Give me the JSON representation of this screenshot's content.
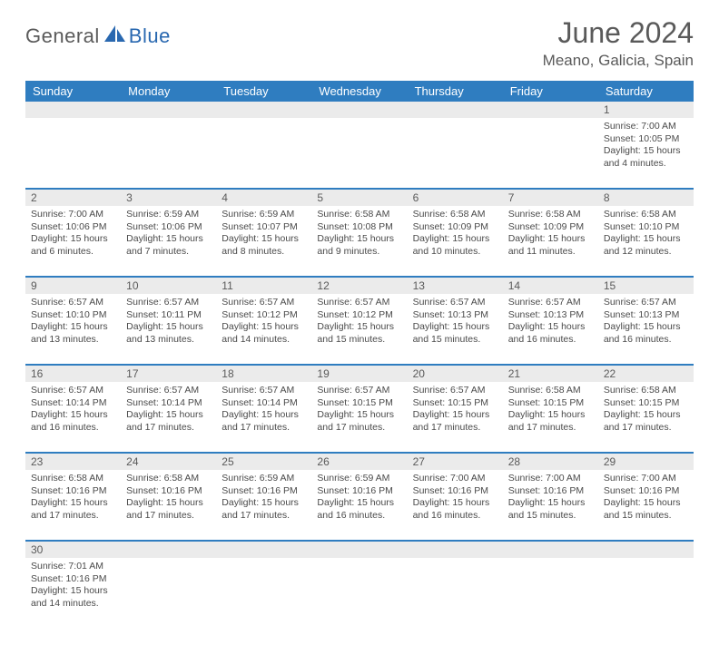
{
  "colors": {
    "header_bg": "#2f7dc0",
    "header_text": "#ffffff",
    "daynum_bg": "#ebebeb",
    "rule": "#2f7dc0",
    "body_text": "#4a4a4a",
    "title_text": "#5a5a5a",
    "logo_gray": "#5a5a5a",
    "logo_blue": "#2968b0",
    "background": "#ffffff"
  },
  "typography": {
    "month_title_size": 32,
    "location_size": 17,
    "day_header_size": 13,
    "daynum_size": 12,
    "cell_text_size": 10.5,
    "font_family": "Arial"
  },
  "logo": {
    "part1": "General",
    "part2": "Blue"
  },
  "title": "June 2024",
  "location": "Meano, Galicia, Spain",
  "day_headers": [
    "Sunday",
    "Monday",
    "Tuesday",
    "Wednesday",
    "Thursday",
    "Friday",
    "Saturday"
  ],
  "weeks": [
    [
      null,
      null,
      null,
      null,
      null,
      null,
      {
        "d": "1",
        "sr": "7:00 AM",
        "ss": "10:05 PM",
        "dl": "15 hours and 4 minutes."
      }
    ],
    [
      {
        "d": "2",
        "sr": "7:00 AM",
        "ss": "10:06 PM",
        "dl": "15 hours and 6 minutes."
      },
      {
        "d": "3",
        "sr": "6:59 AM",
        "ss": "10:06 PM",
        "dl": "15 hours and 7 minutes."
      },
      {
        "d": "4",
        "sr": "6:59 AM",
        "ss": "10:07 PM",
        "dl": "15 hours and 8 minutes."
      },
      {
        "d": "5",
        "sr": "6:58 AM",
        "ss": "10:08 PM",
        "dl": "15 hours and 9 minutes."
      },
      {
        "d": "6",
        "sr": "6:58 AM",
        "ss": "10:09 PM",
        "dl": "15 hours and 10 minutes."
      },
      {
        "d": "7",
        "sr": "6:58 AM",
        "ss": "10:09 PM",
        "dl": "15 hours and 11 minutes."
      },
      {
        "d": "8",
        "sr": "6:58 AM",
        "ss": "10:10 PM",
        "dl": "15 hours and 12 minutes."
      }
    ],
    [
      {
        "d": "9",
        "sr": "6:57 AM",
        "ss": "10:10 PM",
        "dl": "15 hours and 13 minutes."
      },
      {
        "d": "10",
        "sr": "6:57 AM",
        "ss": "10:11 PM",
        "dl": "15 hours and 13 minutes."
      },
      {
        "d": "11",
        "sr": "6:57 AM",
        "ss": "10:12 PM",
        "dl": "15 hours and 14 minutes."
      },
      {
        "d": "12",
        "sr": "6:57 AM",
        "ss": "10:12 PM",
        "dl": "15 hours and 15 minutes."
      },
      {
        "d": "13",
        "sr": "6:57 AM",
        "ss": "10:13 PM",
        "dl": "15 hours and 15 minutes."
      },
      {
        "d": "14",
        "sr": "6:57 AM",
        "ss": "10:13 PM",
        "dl": "15 hours and 16 minutes."
      },
      {
        "d": "15",
        "sr": "6:57 AM",
        "ss": "10:13 PM",
        "dl": "15 hours and 16 minutes."
      }
    ],
    [
      {
        "d": "16",
        "sr": "6:57 AM",
        "ss": "10:14 PM",
        "dl": "15 hours and 16 minutes."
      },
      {
        "d": "17",
        "sr": "6:57 AM",
        "ss": "10:14 PM",
        "dl": "15 hours and 17 minutes."
      },
      {
        "d": "18",
        "sr": "6:57 AM",
        "ss": "10:14 PM",
        "dl": "15 hours and 17 minutes."
      },
      {
        "d": "19",
        "sr": "6:57 AM",
        "ss": "10:15 PM",
        "dl": "15 hours and 17 minutes."
      },
      {
        "d": "20",
        "sr": "6:57 AM",
        "ss": "10:15 PM",
        "dl": "15 hours and 17 minutes."
      },
      {
        "d": "21",
        "sr": "6:58 AM",
        "ss": "10:15 PM",
        "dl": "15 hours and 17 minutes."
      },
      {
        "d": "22",
        "sr": "6:58 AM",
        "ss": "10:15 PM",
        "dl": "15 hours and 17 minutes."
      }
    ],
    [
      {
        "d": "23",
        "sr": "6:58 AM",
        "ss": "10:16 PM",
        "dl": "15 hours and 17 minutes."
      },
      {
        "d": "24",
        "sr": "6:58 AM",
        "ss": "10:16 PM",
        "dl": "15 hours and 17 minutes."
      },
      {
        "d": "25",
        "sr": "6:59 AM",
        "ss": "10:16 PM",
        "dl": "15 hours and 17 minutes."
      },
      {
        "d": "26",
        "sr": "6:59 AM",
        "ss": "10:16 PM",
        "dl": "15 hours and 16 minutes."
      },
      {
        "d": "27",
        "sr": "7:00 AM",
        "ss": "10:16 PM",
        "dl": "15 hours and 16 minutes."
      },
      {
        "d": "28",
        "sr": "7:00 AM",
        "ss": "10:16 PM",
        "dl": "15 hours and 15 minutes."
      },
      {
        "d": "29",
        "sr": "7:00 AM",
        "ss": "10:16 PM",
        "dl": "15 hours and 15 minutes."
      }
    ],
    [
      {
        "d": "30",
        "sr": "7:01 AM",
        "ss": "10:16 PM",
        "dl": "15 hours and 14 minutes."
      },
      null,
      null,
      null,
      null,
      null,
      null
    ]
  ],
  "labels": {
    "sunrise": "Sunrise:",
    "sunset": "Sunset:",
    "daylight": "Daylight:"
  }
}
